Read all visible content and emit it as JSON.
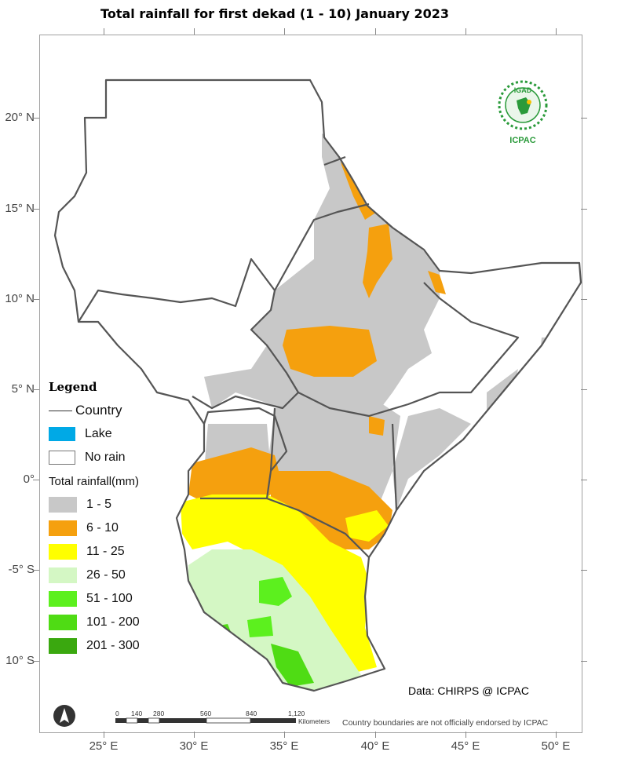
{
  "title": "Total rainfall  for  first  dekad (1 - 10)  January 2023",
  "axes": {
    "y_labels": [
      "20° N",
      "15° N",
      "10° N",
      "5° N",
      "0°",
      "-5° S",
      "10° S"
    ],
    "x_labels": [
      "25° E",
      "30° E",
      "35° E",
      "40° E",
      "45° E",
      "50° E"
    ]
  },
  "legend": {
    "title": "Legend",
    "country": "Country",
    "lake": "Lake",
    "no_rain": "No rain",
    "total_title": "Total rainfall(mm)",
    "classes": [
      {
        "label": "1 - 5",
        "color": "#c8c8c8"
      },
      {
        "label": "6 - 10",
        "color": "#f5a00e"
      },
      {
        "label": "11 - 25",
        "color": "#ffff00"
      },
      {
        "label": "26 - 50",
        "color": "#d4f7c4"
      },
      {
        "label": "51 - 100",
        "color": "#5cf01e"
      },
      {
        "label": "101 - 200",
        "color": "#4fdc14"
      },
      {
        "label": "201 - 300",
        "color": "#3aa80f"
      }
    ],
    "lake_color": "#00a9e6"
  },
  "scale": {
    "ticks": [
      "0",
      "140",
      "280",
      "560",
      "840",
      "1,120"
    ],
    "unit": "Kilometers"
  },
  "logo": {
    "top": "IGAD",
    "bottom": "ICPAC"
  },
  "credit": "Data: CHIRPS @ ICPAC",
  "disclaimer": "Country boundaries are not officially endorsed by ICPAC"
}
